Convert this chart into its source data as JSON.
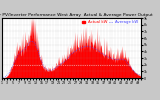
{
  "title": "Solar PV/Inverter Performance West Array  Actual & Average Power Output",
  "legend_actual": "Actual kW",
  "legend_average": "Average kW",
  "fill_color": "#ff0000",
  "avg_line_color": "#4444ff",
  "background_color": "#c8c8c8",
  "plot_bg_color": "#ffffff",
  "grid_color": "#999999",
  "ymax": 9000,
  "title_fontsize": 3.2,
  "legend_fontsize": 2.8,
  "tick_fontsize": 2.3,
  "num_points": 400,
  "dotted_line_y": 2000,
  "yticks": [
    0,
    1000,
    2000,
    3000,
    4000,
    5000,
    6000,
    7000,
    8000,
    9000
  ],
  "ytick_labels": [
    "0",
    "1k",
    "2k",
    "3k",
    "4k",
    "5k",
    "6k",
    "7k",
    "8k",
    "9k"
  ]
}
